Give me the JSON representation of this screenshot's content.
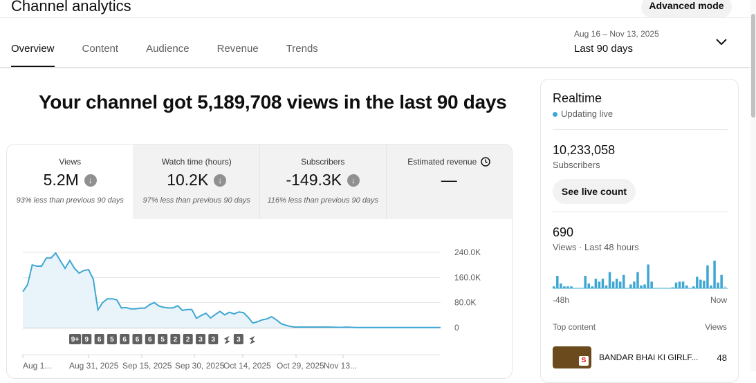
{
  "header": {
    "title": "Channel analytics",
    "advanced_mode": "Advanced mode"
  },
  "tabs": [
    {
      "label": "Overview",
      "selected": true
    },
    {
      "label": "Content"
    },
    {
      "label": "Audience"
    },
    {
      "label": "Revenue"
    },
    {
      "label": "Trends"
    }
  ],
  "date_range": {
    "dates": "Aug 16 – Nov 13, 2025",
    "period": "Last 90 days"
  },
  "headline": "Your channel got 5,189,708 views in the last 90 days",
  "metrics": [
    {
      "label": "Views",
      "value": "5.2M",
      "trend": "down",
      "compare": "93% less than previous 90 days"
    },
    {
      "label": "Watch time (hours)",
      "value": "10.2K",
      "trend": "down",
      "compare": "97% less than previous 90 days"
    },
    {
      "label": "Subscribers",
      "value": "-149.3K",
      "trend": "down",
      "compare": "116% less than previous 90 days"
    },
    {
      "label": "Estimated revenue",
      "value": "—",
      "icon": "clock-icon"
    }
  ],
  "chart_data": {
    "type": "area",
    "color": "#3ea6d3",
    "ylim": [
      0,
      240000
    ],
    "yticks": [
      "240.0K",
      "160.0K",
      "80.0K",
      "0"
    ],
    "xticks": [
      "Aug 1...",
      "Aug 31, 2025",
      "Sep 15, 2025",
      "Sep 30, 2025",
      "Oct 14, 2025",
      "Oct 29, 2025",
      "Nov 13..."
    ],
    "x_first": "2025-08-16",
    "x_last": "2025-11-13",
    "values": [
      115000,
      137000,
      200000,
      196000,
      196000,
      222000,
      222000,
      238000,
      213000,
      189000,
      214000,
      189000,
      174000,
      182000,
      185000,
      155000,
      57000,
      80000,
      92000,
      92000,
      89000,
      63000,
      64000,
      60000,
      60000,
      62000,
      62000,
      73000,
      80000,
      69000,
      65000,
      63000,
      63000,
      70000,
      55000,
      58000,
      58000,
      30000,
      39000,
      46000,
      31000,
      42000,
      52000,
      41000,
      49000,
      44000,
      50000,
      48000,
      33000,
      15000,
      19000,
      25000,
      28000,
      35000,
      25000,
      13000,
      8000,
      4000,
      2000,
      2000,
      2000,
      2000,
      2000,
      2000,
      2000,
      2000,
      1500,
      1000,
      1000,
      2000,
      1000,
      500,
      500,
      500,
      500,
      500,
      500,
      500,
      500,
      500,
      500,
      500,
      500,
      500,
      500,
      500,
      500,
      500,
      500,
      500
    ],
    "annotations": [
      "9+",
      "9",
      "6",
      "5",
      "6",
      "6",
      "6",
      "5",
      "2",
      "2",
      "3",
      "3",
      "shorts",
      "3",
      "shorts"
    ]
  },
  "realtime": {
    "title": "Realtime",
    "status": "Updating live",
    "subscribers": "10,233,058",
    "subscribers_label": "Subscribers",
    "see_live": "See live count",
    "views": "690",
    "views_label": "Views · Last 48 hours",
    "bars": [
      2,
      13,
      5,
      2,
      2,
      2,
      0,
      0,
      0,
      13,
      5,
      2,
      10,
      7,
      10,
      3,
      17,
      7,
      10,
      7,
      14,
      0,
      4,
      7,
      17,
      3,
      4,
      25,
      7,
      0,
      0,
      0,
      0,
      0,
      1,
      6,
      7,
      7,
      3,
      0,
      2,
      12,
      9,
      8,
      24,
      3,
      29,
      6,
      14,
      2
    ],
    "axis_start": "-48h",
    "axis_end": "Now",
    "top_content_label": "Top content",
    "views_col": "Views",
    "top_content": [
      {
        "title": "BANDAR BHAI KI GIRLF...",
        "views": "48"
      }
    ]
  }
}
